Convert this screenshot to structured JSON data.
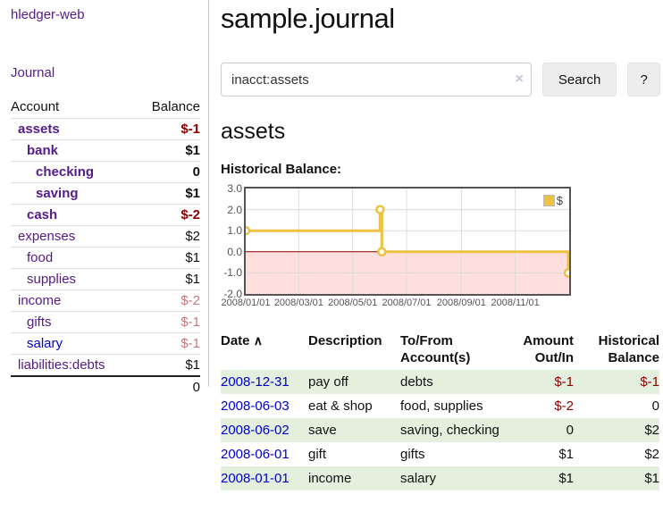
{
  "sidebar": {
    "app_title": "hledger-web",
    "nav": {
      "journal_label": "Journal"
    },
    "accounts_table": {
      "headers": {
        "account": "Account",
        "balance": "Balance"
      },
      "rows": [
        {
          "name": "assets",
          "indent": 0,
          "bold": true,
          "balance": "$-1",
          "balance_tone": "strong-negative"
        },
        {
          "name": "bank",
          "indent": 1,
          "bold": true,
          "balance": "$1",
          "balance_tone": "normal"
        },
        {
          "name": "checking",
          "indent": 2,
          "bold": true,
          "balance": "0",
          "balance_tone": "normal"
        },
        {
          "name": "saving",
          "indent": 2,
          "bold": true,
          "balance": "$1",
          "balance_tone": "normal"
        },
        {
          "name": "cash",
          "indent": 1,
          "bold": true,
          "balance": "$-2",
          "balance_tone": "strong-negative"
        },
        {
          "name": "expenses",
          "indent": 0,
          "bold": false,
          "balance": "$2",
          "balance_tone": "normal"
        },
        {
          "name": "food",
          "indent": 1,
          "bold": false,
          "balance": "$1",
          "balance_tone": "normal"
        },
        {
          "name": "supplies",
          "indent": 1,
          "bold": false,
          "balance": "$1",
          "balance_tone": "normal"
        },
        {
          "name": "income",
          "indent": 0,
          "bold": false,
          "balance": "$-2",
          "balance_tone": "soft-negative"
        },
        {
          "name": "gifts",
          "indent": 1,
          "bold": false,
          "balance": "$-1",
          "balance_tone": "soft-negative"
        },
        {
          "name": "salary",
          "indent": 1,
          "bold": false,
          "balance": "$-1",
          "balance_tone": "soft-negative",
          "link_color": "blue"
        },
        {
          "name": "liabilities:debts",
          "indent": 0,
          "bold": false,
          "balance": "$1",
          "balance_tone": "normal"
        }
      ],
      "total": "0"
    }
  },
  "header": {
    "title": "sample.journal"
  },
  "search": {
    "query": "inacct:assets",
    "clear_icon": "×",
    "search_label": "Search",
    "help_label": "?"
  },
  "account_page": {
    "heading": "assets",
    "chart_label": "Historical Balance:"
  },
  "chart_data": {
    "type": "line",
    "title": "Historical Balance",
    "legend": "$",
    "legend_position": "top-right",
    "step": true,
    "line_color": "#edc240",
    "negative_region_color": "#ffdede",
    "zero_line_color": "#880000",
    "grid": true,
    "xlim": [
      0,
      366
    ],
    "ylim": [
      -2,
      3
    ],
    "x_ticks": [
      {
        "pos": 0,
        "label": "2008/01/01"
      },
      {
        "pos": 60,
        "label": "2008/03/01"
      },
      {
        "pos": 121,
        "label": "2008/05/01"
      },
      {
        "pos": 182,
        "label": "2008/07/01"
      },
      {
        "pos": 244,
        "label": "2008/09/01"
      },
      {
        "pos": 305,
        "label": "2008/11/01"
      }
    ],
    "y_ticks": [
      {
        "value": 3,
        "label": "3.0"
      },
      {
        "value": 2,
        "label": "2.0"
      },
      {
        "value": 1,
        "label": "1.0"
      },
      {
        "value": 0,
        "label": "0.0"
      },
      {
        "value": -1,
        "label": "-1.0"
      },
      {
        "value": -2,
        "label": "-2.0"
      }
    ],
    "series": [
      {
        "name": "$",
        "points": [
          [
            0,
            1
          ],
          [
            152,
            2
          ],
          [
            154,
            0
          ],
          [
            365,
            -1
          ]
        ]
      }
    ]
  },
  "transactions": {
    "headers": {
      "date": "Date",
      "sort_icon": "∧",
      "description": "Description",
      "account": "To/From Account(s)",
      "amount": "Amount Out/In",
      "balance": "Historical Balance"
    },
    "rows": [
      {
        "date": "2008-12-31",
        "description": "pay off",
        "accounts": "debts",
        "amount": "$-1",
        "balance": "$-1"
      },
      {
        "date": "2008-06-03",
        "description": "eat & shop",
        "accounts": "food, supplies",
        "amount": "$-2",
        "balance": "0"
      },
      {
        "date": "2008-06-02",
        "description": "save",
        "accounts": "saving, checking",
        "amount": "0",
        "balance": "$2"
      },
      {
        "date": "2008-06-01",
        "description": "gift",
        "accounts": "gifts",
        "amount": "$1",
        "balance": "$2"
      },
      {
        "date": "2008-01-01",
        "description": "income",
        "accounts": "salary",
        "amount": "$1",
        "balance": "$1"
      }
    ]
  }
}
